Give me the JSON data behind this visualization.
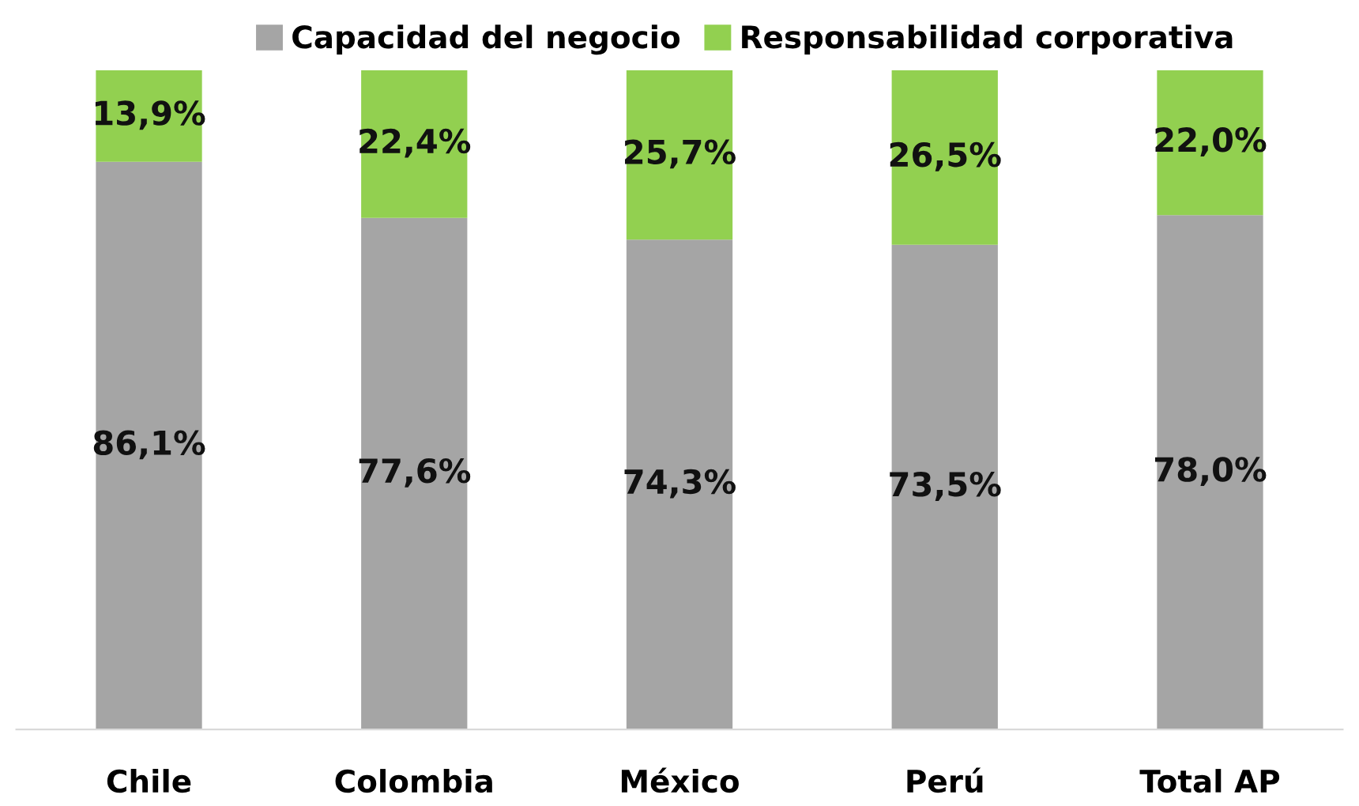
{
  "chart_data": {
    "type": "bar",
    "stacked": true,
    "legend": "top",
    "grid": false,
    "categories": [
      "Chile",
      "Colombia",
      "México",
      "Perú",
      "Total AP"
    ],
    "series": [
      {
        "name": "Capacidad del negocio",
        "color": "#a5a5a5",
        "values": [
          86.1,
          77.6,
          74.3,
          73.5,
          78.0
        ],
        "value_labels": [
          "86,1%",
          "77,6%",
          "74,3%",
          "73,5%",
          "78,0%"
        ]
      },
      {
        "name": "Responsabilidad corporativa",
        "color": "#92d050",
        "values": [
          13.9,
          22.4,
          25.7,
          26.5,
          22.0
        ],
        "value_labels": [
          "13,9%",
          "22,4%",
          "25,7%",
          "26,5%",
          "22,0%"
        ]
      }
    ]
  }
}
